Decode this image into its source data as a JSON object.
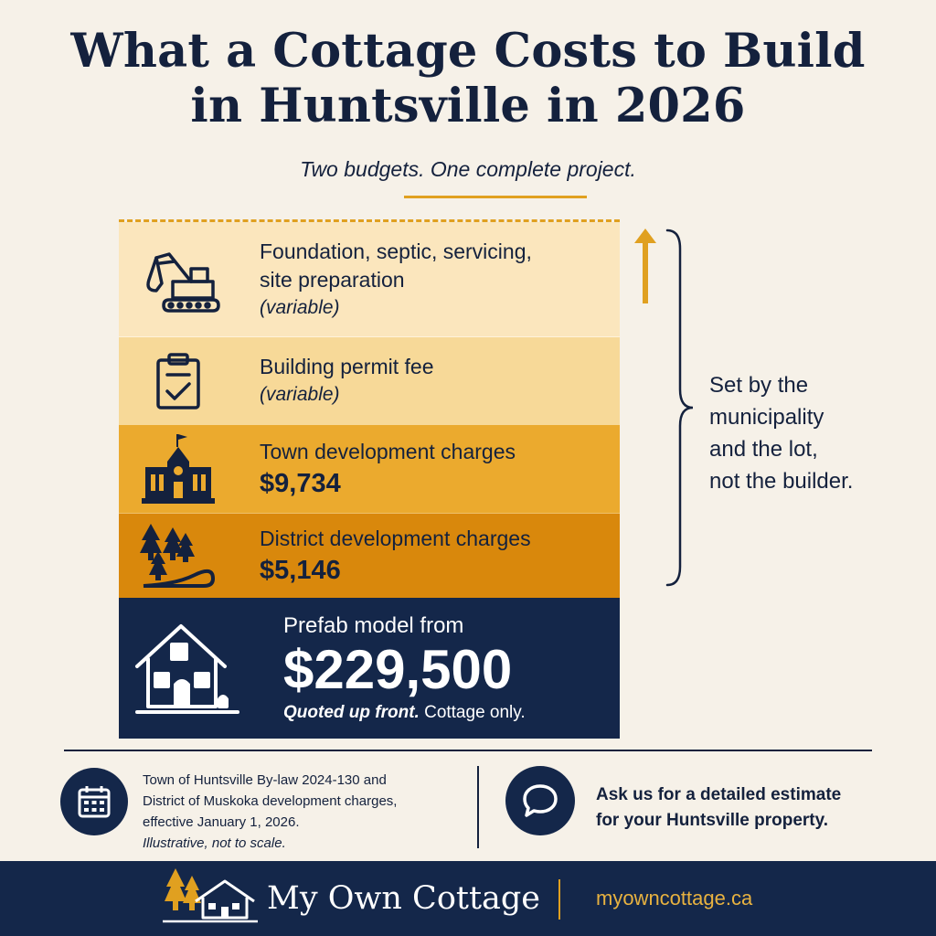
{
  "title_line1": "What a Cottage Costs to Build",
  "title_line2": "in Huntsville in 2026",
  "subtitle": "Two budgets. One complete project.",
  "layers": {
    "site": {
      "label_line1": "Foundation, septic, servicing,",
      "label_line2": "site preparation",
      "note": "(variable)"
    },
    "permit": {
      "label": "Building permit fee",
      "note": "(variable)"
    },
    "town": {
      "label": "Town development charges",
      "amount": "$9,734"
    },
    "district": {
      "label": "District development charges",
      "amount": "$5,146"
    },
    "prefab": {
      "label": "Prefab model from",
      "amount": "$229,500",
      "quote_bold": "Quoted up front.",
      "quote_rest": " Cottage only."
    }
  },
  "aside": {
    "line1": "Set by the",
    "line2": "municipality",
    "line3": "and the lot,",
    "line4": "not the builder."
  },
  "source": {
    "line1": "Town of Huntsville By-law 2024-130 and",
    "line2": "District of Muskoka development charges,",
    "line3": "effective January 1, 2026.",
    "line4": "Illustrative, not to scale."
  },
  "cta": {
    "line1": "Ask us for a detailed estimate",
    "line2": "for your Huntsville property."
  },
  "brand": {
    "name": "My Own Cottage",
    "url": "myowncottage.ca"
  },
  "colors": {
    "navy": "#14274a",
    "accent": "#e0a020",
    "background": "#f6f1e8"
  },
  "icons": [
    "excavator-icon",
    "clipboard-check-icon",
    "town-hall-icon",
    "forest-road-icon",
    "house-icon",
    "calendar-icon",
    "chat-bubble-icon",
    "cottage-logo-icon"
  ]
}
